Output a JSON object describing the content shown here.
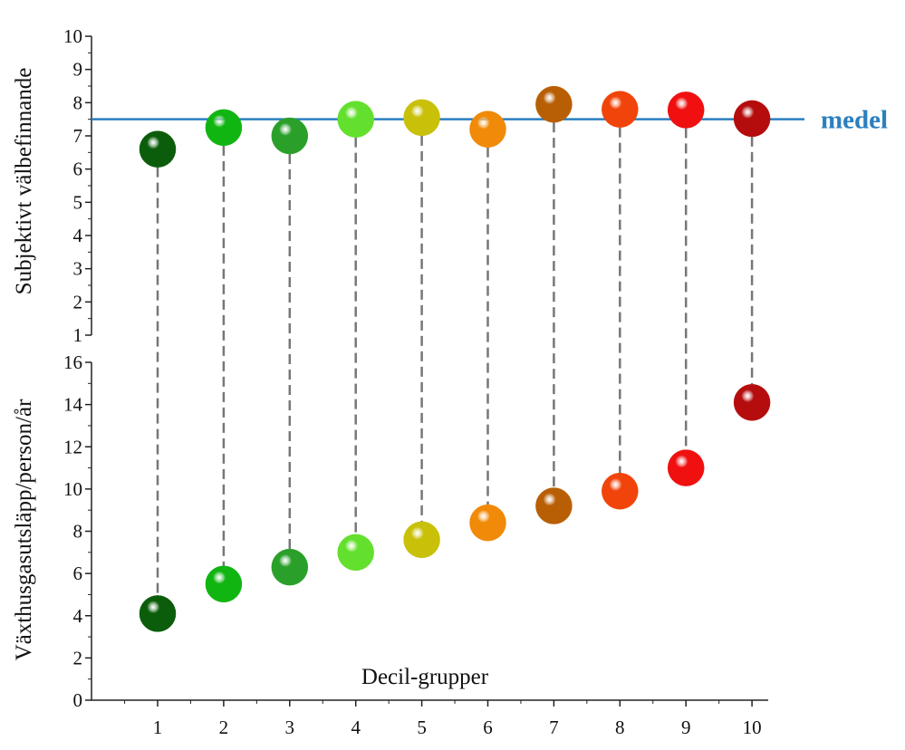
{
  "chart_data": {
    "type": "scatter",
    "categories": [
      "1",
      "2",
      "3",
      "4",
      "5",
      "6",
      "7",
      "8",
      "9",
      "10"
    ],
    "xlabel": "Decil-grupper",
    "colors": [
      "#0b5d0b",
      "#11b511",
      "#2aa02a",
      "#63e02d",
      "#c9c00a",
      "#f08a08",
      "#b85f06",
      "#f0440a",
      "#f01010",
      "#b50d0d"
    ],
    "top_panel": {
      "ylabel": "Subjektivt  välbefinnande",
      "ylim": [
        1,
        10
      ],
      "yticks": [
        "1",
        "2",
        "3",
        "4",
        "5",
        "6",
        "7",
        "8",
        "9",
        "10"
      ],
      "values": [
        6.6,
        7.25,
        7.0,
        7.5,
        7.55,
        7.2,
        7.95,
        7.8,
        7.78,
        7.52
      ],
      "reference_line": {
        "value": 7.5,
        "label": "medel",
        "color": "#2a7fc0"
      }
    },
    "bottom_panel": {
      "ylabel": "Växthusgasutsläpp/person/år",
      "ylim": [
        0,
        16
      ],
      "yticks": [
        "0",
        "2",
        "4",
        "6",
        "8",
        "10",
        "12",
        "14",
        "16"
      ],
      "values": [
        4.1,
        5.5,
        6.3,
        7.0,
        7.6,
        8.4,
        9.2,
        9.9,
        11.0,
        14.1
      ]
    }
  }
}
